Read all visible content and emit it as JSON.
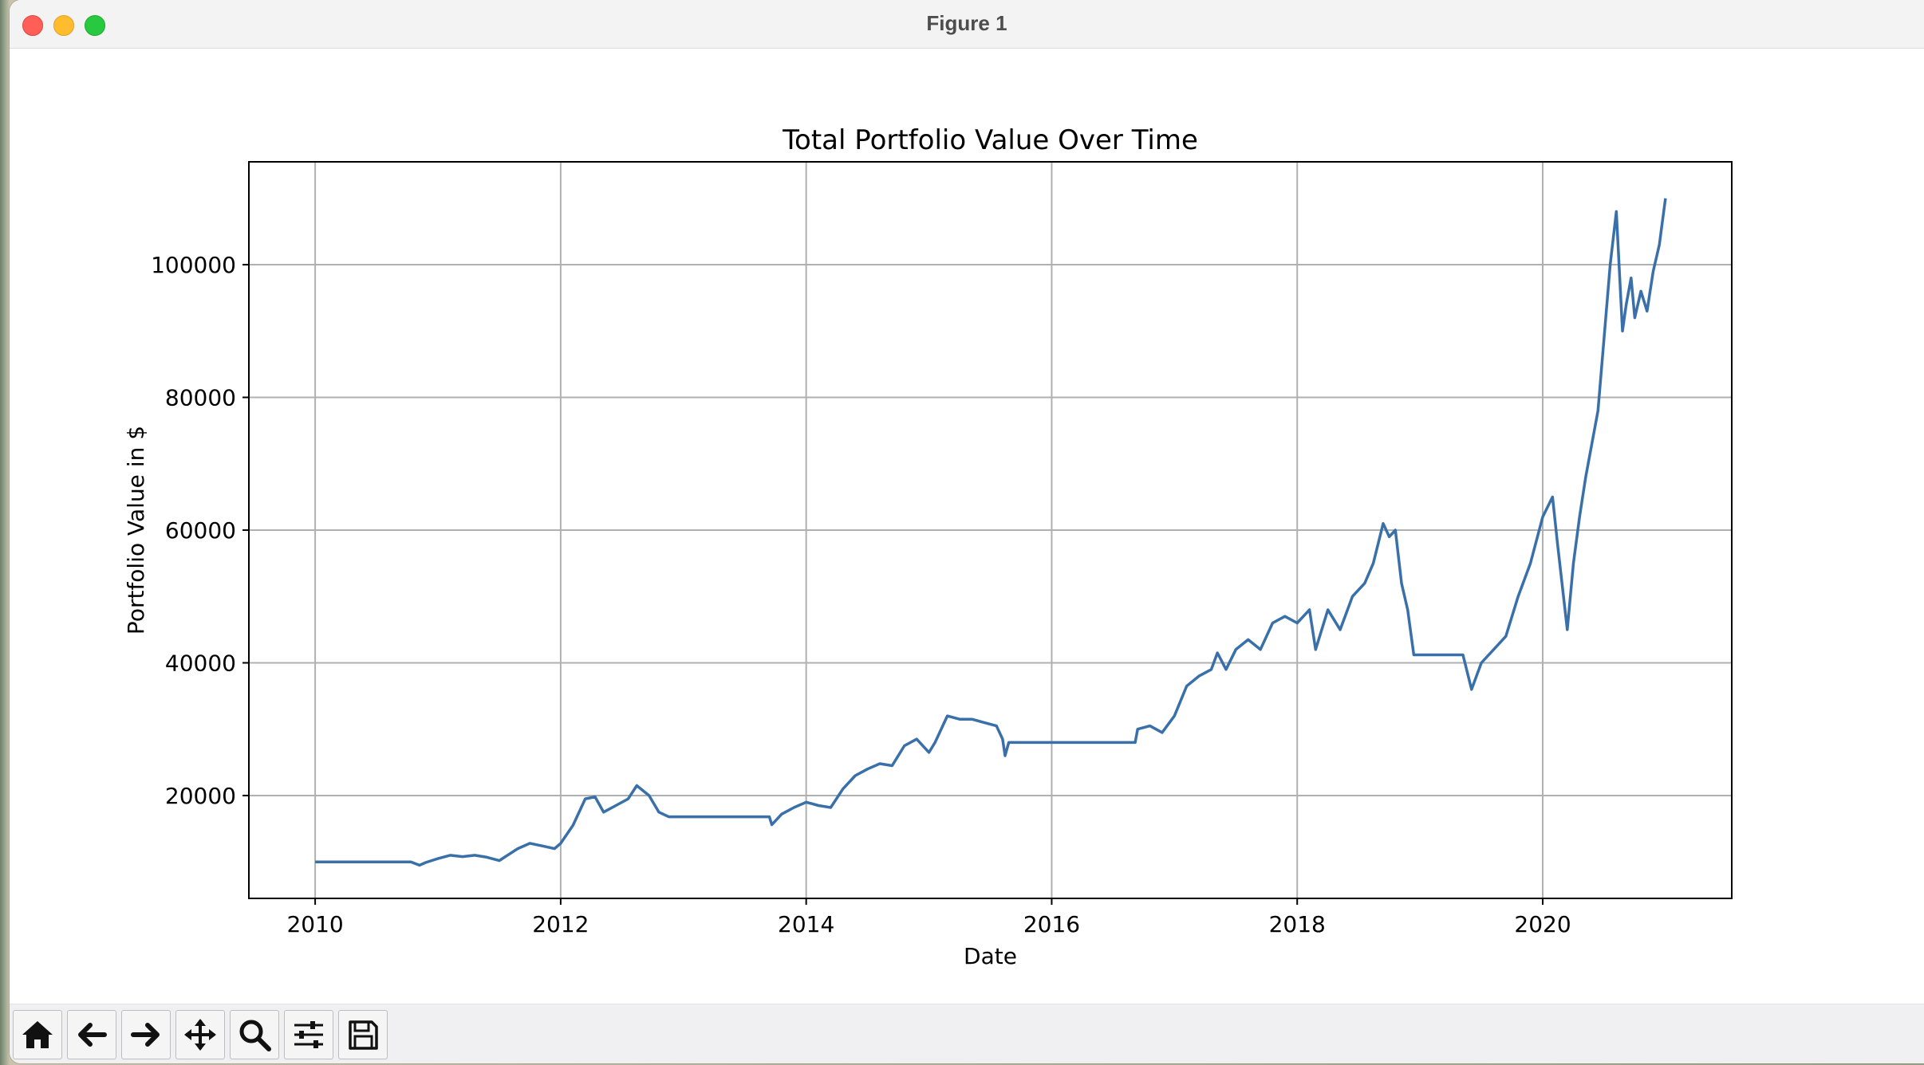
{
  "window": {
    "title": "Figure 1"
  },
  "toolbar": {
    "buttons": [
      {
        "name": "home-button",
        "icon": "home-icon"
      },
      {
        "name": "back-button",
        "icon": "arrow-left-icon"
      },
      {
        "name": "forward-button",
        "icon": "arrow-right-icon"
      },
      {
        "name": "pan-button",
        "icon": "move-icon"
      },
      {
        "name": "zoom-button",
        "icon": "zoom-icon"
      },
      {
        "name": "configure-subplots-button",
        "icon": "sliders-icon"
      },
      {
        "name": "save-button",
        "icon": "save-icon"
      }
    ]
  },
  "chart_data": {
    "type": "line",
    "title": "Total Portfolio Value Over Time",
    "xlabel": "Date",
    "ylabel": "Portfolio Value in $",
    "xlim": [
      2009.46,
      2021.54
    ],
    "ylim": [
      4500,
      115500
    ],
    "xticks": [
      2010,
      2012,
      2014,
      2016,
      2018,
      2020
    ],
    "xtick_labels": [
      "2010",
      "2012",
      "2014",
      "2016",
      "2018",
      "2020"
    ],
    "yticks": [
      20000,
      40000,
      60000,
      80000,
      100000
    ],
    "ytick_labels": [
      "20000",
      "40000",
      "60000",
      "80000",
      "100000"
    ],
    "grid": true,
    "line_color": "#3a70aa",
    "series": [
      {
        "x": [
          2010.0,
          2010.5,
          2010.78,
          2010.85,
          2010.9,
          2011.0,
          2011.1,
          2011.2,
          2011.3,
          2011.4,
          2011.5,
          2011.55,
          2011.65,
          2011.75,
          2011.85,
          2011.95,
          2012.0,
          2012.1,
          2012.2,
          2012.28,
          2012.35,
          2012.45,
          2012.55,
          2012.62,
          2012.72,
          2012.8,
          2012.88,
          2012.93,
          2013.0,
          2013.5,
          2013.7,
          2013.72,
          2013.8,
          2013.9,
          2014.0,
          2014.1,
          2014.2,
          2014.3,
          2014.4,
          2014.5,
          2014.6,
          2014.7,
          2014.8,
          2014.9,
          2015.0,
          2015.05,
          2015.15,
          2015.25,
          2015.35,
          2015.45,
          2015.55,
          2015.6,
          2015.62,
          2015.65,
          2016.0,
          2016.5,
          2016.68,
          2016.7,
          2016.8,
          2016.9,
          2017.0,
          2017.1,
          2017.2,
          2017.3,
          2017.35,
          2017.42,
          2017.5,
          2017.6,
          2017.7,
          2017.8,
          2017.9,
          2018.0,
          2018.1,
          2018.15,
          2018.25,
          2018.35,
          2018.45,
          2018.55,
          2018.62,
          2018.7,
          2018.75,
          2018.8,
          2018.85,
          2018.9,
          2018.95,
          2019.0,
          2019.35,
          2019.42,
          2019.5,
          2019.6,
          2019.7,
          2019.8,
          2019.9,
          2020.0,
          2020.08,
          2020.12,
          2020.2,
          2020.25,
          2020.3,
          2020.35,
          2020.45,
          2020.55,
          2020.6,
          2020.65,
          2020.68,
          2020.72,
          2020.75,
          2020.8,
          2020.85,
          2020.9,
          2020.95,
          2021.0
        ],
        "y": [
          10000,
          10000,
          10000,
          9500,
          9900,
          10500,
          11000,
          10800,
          11000,
          10700,
          10200,
          10800,
          12000,
          12800,
          12400,
          12000,
          12800,
          15500,
          19500,
          19800,
          17500,
          18500,
          19500,
          21500,
          20000,
          17500,
          16800,
          16800,
          16800,
          16800,
          16800,
          15600,
          17200,
          18200,
          19000,
          18500,
          18200,
          21000,
          23000,
          24000,
          24800,
          24500,
          27500,
          28500,
          26500,
          28000,
          32000,
          31500,
          31500,
          31000,
          30500,
          28500,
          26000,
          28000,
          28000,
          28000,
          28000,
          30000,
          30500,
          29500,
          32000,
          36500,
          38000,
          39000,
          41500,
          39000,
          42000,
          43500,
          42000,
          46000,
          47000,
          46000,
          48000,
          42000,
          48000,
          45000,
          50000,
          52000,
          55000,
          61000,
          59000,
          60000,
          52000,
          48000,
          41200,
          41200,
          41200,
          36000,
          40000,
          42000,
          44000,
          50000,
          55000,
          62000,
          65000,
          58000,
          45000,
          55000,
          62000,
          68000,
          78000,
          100000,
          108000,
          90000,
          94000,
          98000,
          92000,
          96000,
          93000,
          99000,
          103000,
          110000
        ]
      }
    ]
  }
}
